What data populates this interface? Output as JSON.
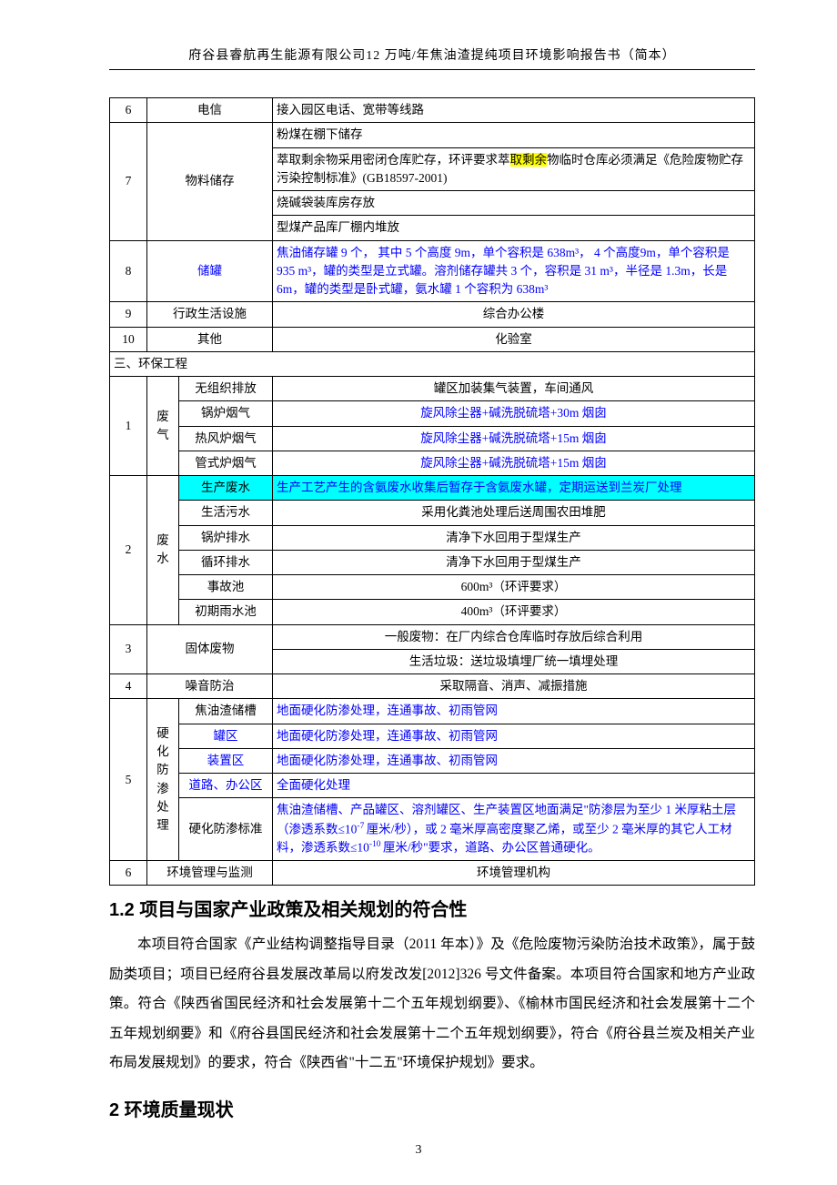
{
  "header": "府谷县睿航再生能源有限公司12 万吨/年焦油渣提纯项目环境影响报告书（简本）",
  "page_number": "3",
  "r6": {
    "idx": "6",
    "label": "电信",
    "desc": "接入园区电话、宽带等线路"
  },
  "r7": {
    "idx": "7",
    "label": "物料储存",
    "d1": "粉煤在棚下储存",
    "d2a": "萃取剩余物采用密闭仓库贮存，环评要求萃",
    "d2hl": "取剩余",
    "d2b": "物临时仓库必须满足《危险废物贮存污染控制标准》(GB18597-2001)",
    "d3": "烧碱袋装库房存放",
    "d4": "型煤产品库厂棚内堆放"
  },
  "r8": {
    "idx": "8",
    "label": "储罐",
    "desc": "焦油储存罐 9 个， 其中 5 个高度 9m，单个容积是 638m³，  4 个高度9m，单个容积是 935 m³，罐的类型是立式罐。溶剂储存罐共 3 个，容积是 31 m³，半径是 1.3m，长是 6m，罐的类型是卧式罐，氨水罐 1 个容积为 638m³"
  },
  "r9": {
    "idx": "9",
    "label": "行政生活设施",
    "desc": "综合办公楼"
  },
  "r10": {
    "idx": "10",
    "label": "其他",
    "desc": "化验室"
  },
  "sec3": "三、环保工程",
  "ep1": {
    "idx": "1",
    "cat": "废气",
    "s1": "无组织排放",
    "d1": "罐区加装集气装置，车间通风",
    "s2": "锅炉烟气",
    "d2": "旋风除尘器+碱洗脱硫塔+30m 烟囱",
    "s3": "热风炉烟气",
    "d3": "旋风除尘器+碱洗脱硫塔+15m 烟囱",
    "s4": "管式炉烟气",
    "d4": "旋风除尘器+碱洗脱硫塔+15m 烟囱"
  },
  "ep2": {
    "idx": "2",
    "cat": "废水",
    "s1": "生产废水",
    "d1": "生产工艺产生的含氨废水收集后暂存于含氨废水罐，定期运送到兰炭厂处理",
    "s2": "生活污水",
    "d2": "采用化粪池处理后送周围农田堆肥",
    "s3": "锅炉排水",
    "d3": "清净下水回用于型煤生产",
    "s4": "循环排水",
    "d4": "清净下水回用于型煤生产",
    "s5": "事故池",
    "d5": "600m³（环评要求）",
    "s6": "初期雨水池",
    "d6": "400m³（环评要求）"
  },
  "ep3": {
    "idx": "3",
    "label": "固体废物",
    "d1": "一般废物：在厂内综合仓库临时存放后综合利用",
    "d2": "生活垃圾：送垃圾填埋厂统一填埋处理"
  },
  "ep4": {
    "idx": "4",
    "label": "噪音防治",
    "desc": "采取隔音、消声、减振措施"
  },
  "ep5": {
    "idx": "5",
    "cat": "硬化防渗处理",
    "s1": "焦油渣储槽",
    "d1": "地面硬化防渗处理，连通事故、初雨管网",
    "s2": "罐区",
    "d2": "地面硬化防渗处理，连通事故、初雨管网",
    "s3": "装置区",
    "d3": "地面硬化防渗处理，连通事故、初雨管网",
    "s4": "道路、办公区",
    "d4": "全面硬化处理",
    "s5": "硬化防渗标准",
    "d5a": "焦油渣储槽、产品罐区、溶剂罐区、生产装置区地面满足\"防渗层为至少 1 米厚粘土层（渗透系数≤10",
    "d5b": "厘米/秒），或 2 毫米厚高密度聚乙烯，或至少 2 毫米厚的其它人工材料，渗透系数≤10",
    "d5c": "厘米/秒\"要求，道路、办公区普通硬化。"
  },
  "ep6": {
    "idx": "6",
    "label": "环境管理与监测",
    "desc": "环境管理机构"
  },
  "h12": "1.2  项目与国家产业政策及相关规划的符合性",
  "para1": "本项目符合国家《产业结构调整指导目录（2011 年本）》及《危险废物污染防治技术政策》，属于鼓励类项目；项目已经府谷县发展改革局以府发改发[2012]326 号文件备案。本项目符合国家和地方产业政策。符合《陕西省国民经济和社会发展第十二个五年规划纲要》、《榆林市国民经济和社会发展第十二个五年规划纲要》和《府谷县国民经济和社会发展第十二个五年规划纲要》，符合《府谷县兰炭及相关产业布局发展规划》的要求，符合《陕西省\"十二五\"环境保护规划》要求。",
  "h2": "2 环境质量现状"
}
